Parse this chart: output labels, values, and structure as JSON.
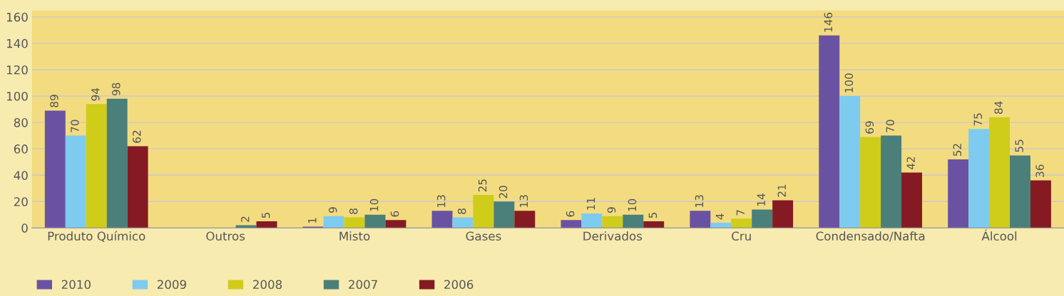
{
  "chart_data": {
    "type": "bar",
    "categories": [
      "Produto Químico",
      "Outros",
      "Misto",
      "Gases",
      "Derivados",
      "Cru",
      "Condensado/Nafta",
      "Álcool"
    ],
    "series": [
      {
        "name": "2010",
        "color": "#6a52a3",
        "values": [
          89,
          null,
          1,
          13,
          6,
          13,
          146,
          52
        ]
      },
      {
        "name": "2009",
        "color": "#7ecbf0",
        "values": [
          70,
          null,
          9,
          8,
          11,
          4,
          100,
          75
        ]
      },
      {
        "name": "2008",
        "color": "#d0cc1a",
        "values": [
          94,
          null,
          8,
          25,
          9,
          7,
          69,
          84
        ]
      },
      {
        "name": "2007",
        "color": "#4a7f7a",
        "values": [
          98,
          2,
          10,
          20,
          10,
          14,
          70,
          55
        ]
      },
      {
        "name": "2006",
        "color": "#861a22",
        "values": [
          62,
          5,
          6,
          13,
          5,
          21,
          42,
          36
        ]
      }
    ],
    "ylim": [
      0,
      165
    ],
    "yticks": [
      0,
      20,
      40,
      60,
      80,
      100,
      120,
      140,
      160
    ],
    "grid": "y",
    "legend": "bottom left",
    "data_labels": true
  }
}
